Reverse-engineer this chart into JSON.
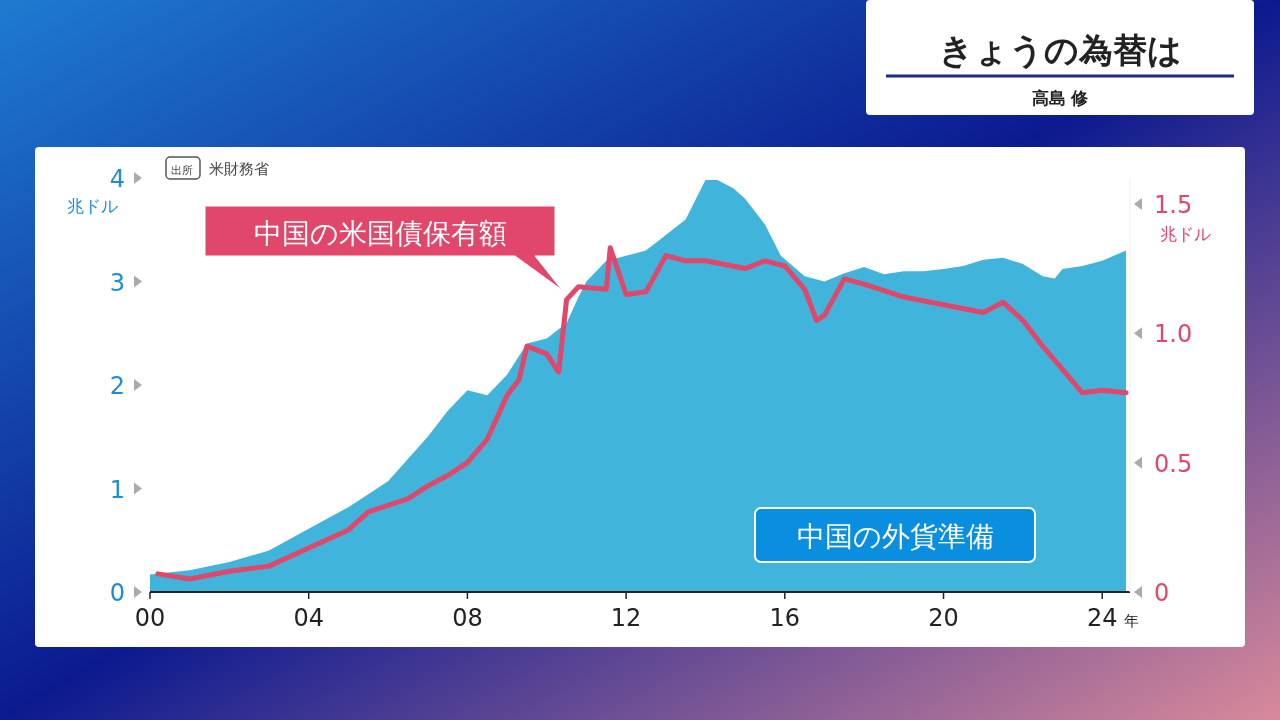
{
  "chart_data": {
    "type": "area",
    "title": "きょうの為替は",
    "subtitle": "高島 修",
    "ylabel": "兆ドル",
    "y2label": "兆ドル",
    "xlabel": "年",
    "annotations": [
      "出所",
      "米財務省"
    ],
    "xlim": [
      2000,
      2024.7
    ],
    "xticks": [
      {
        "value": 2000,
        "label": "00"
      },
      {
        "value": 2004,
        "label": "04"
      },
      {
        "value": 2008,
        "label": "08"
      },
      {
        "value": 2012,
        "label": "12"
      },
      {
        "value": 2016,
        "label": "16"
      },
      {
        "value": 2020,
        "label": "20"
      },
      {
        "value": 2024,
        "label": "24"
      }
    ],
    "ylim": [
      0,
      4
    ],
    "yticks": [
      0,
      1,
      2,
      3,
      4
    ],
    "y2lim": [
      0,
      1.6
    ],
    "y2ticks": [
      0,
      0.5,
      {
        "value": 1,
        "label": "1.0"
      },
      1.5
    ],
    "legend": false,
    "grid": false,
    "series": [
      {
        "name": "中国の外貨準備",
        "type": "area",
        "color": "#41b4db",
        "x": [
          2000,
          2001,
          2002,
          2003,
          2004,
          2005,
          2006,
          2007,
          2007.5,
          2008,
          2008.5,
          2009,
          2009.5,
          2010,
          2010.5,
          2010.8,
          2011,
          2011.5,
          2012,
          2012.5,
          2013,
          2013.5,
          2014,
          2014.3,
          2014.7,
          2015,
          2015.5,
          2015.9,
          2016.5,
          2017,
          2017.5,
          2018,
          2018.5,
          2019,
          2019.5,
          2020,
          2020.5,
          2021,
          2021.5,
          2022,
          2022.5,
          2022.8,
          2023,
          2023.5,
          2024,
          2024.6
        ],
        "values": [
          0.17,
          0.21,
          0.29,
          0.4,
          0.61,
          0.82,
          1.07,
          1.5,
          1.75,
          1.95,
          1.9,
          2.1,
          2.4,
          2.45,
          2.6,
          2.85,
          3.0,
          3.2,
          3.25,
          3.3,
          3.45,
          3.6,
          3.98,
          3.98,
          3.9,
          3.8,
          3.55,
          3.25,
          3.05,
          3.0,
          3.08,
          3.14,
          3.07,
          3.1,
          3.1,
          3.12,
          3.15,
          3.21,
          3.23,
          3.17,
          3.05,
          3.03,
          3.12,
          3.15,
          3.2,
          3.3
        ]
      },
      {
        "name": "中国の米国債保有額",
        "type": "line",
        "axis": "y2",
        "color": "#e0476a",
        "x": [
          2000.2,
          2001,
          2002,
          2003,
          2004,
          2005,
          2005.5,
          2006.5,
          2007,
          2007.5,
          2008,
          2008.5,
          2009,
          2009.3,
          2009.5,
          2010,
          2010.3,
          2010.5,
          2010.8,
          2011.5,
          2011.6,
          2011.8,
          2012,
          2012.5,
          2013,
          2013.5,
          2014,
          2015,
          2015.5,
          2016,
          2016.5,
          2016.8,
          2017,
          2017.5,
          2018,
          2019,
          2020,
          2021,
          2021.5,
          2022,
          2022.5,
          2023,
          2023.5,
          2024,
          2024.6
        ],
        "values": [
          0.07,
          0.05,
          0.08,
          0.1,
          0.17,
          0.24,
          0.31,
          0.36,
          0.41,
          0.45,
          0.5,
          0.59,
          0.76,
          0.82,
          0.95,
          0.92,
          0.85,
          1.13,
          1.18,
          1.17,
          1.33,
          1.24,
          1.15,
          1.16,
          1.3,
          1.28,
          1.28,
          1.25,
          1.28,
          1.26,
          1.17,
          1.05,
          1.07,
          1.21,
          1.19,
          1.14,
          1.11,
          1.08,
          1.12,
          1.05,
          0.95,
          0.86,
          0.77,
          0.78,
          0.77
        ]
      }
    ]
  }
}
